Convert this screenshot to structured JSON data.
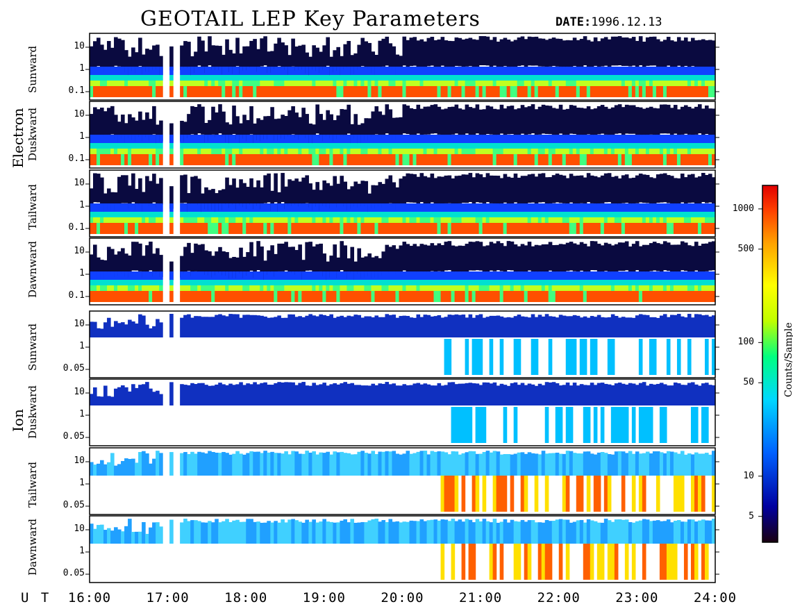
{
  "header": {
    "title": "GEOTAIL LEP Key Parameters",
    "date_label": "DATE:",
    "date_value": "1996.12.13"
  },
  "groups": {
    "electron": "Electron",
    "ion": "Ion"
  },
  "colorbar": {
    "label": "Counts/Sample",
    "ticks": [
      "1000",
      "500",
      "100",
      "50",
      "10",
      "5"
    ],
    "tick_values": [
      1000,
      500,
      100,
      50,
      10,
      5
    ],
    "colors": [
      "#1a0010",
      "#0000a0",
      "#0060ff",
      "#00d8ff",
      "#00ff80",
      "#c0ff00",
      "#ffff00",
      "#ffa000",
      "#ff4000",
      "#e00000"
    ]
  },
  "x_axis": {
    "ut_label": "U T",
    "ticks": [
      "16:00",
      "17:00",
      "18:00",
      "19:00",
      "20:00",
      "21:00",
      "22:00",
      "23:00",
      "24:00"
    ]
  },
  "chart_data": [
    {
      "type": "heatmap",
      "group": "Electron",
      "direction": "Sunward",
      "y_ticks": [
        "10",
        "1",
        "0.1"
      ],
      "x_range_hours": [
        16,
        24
      ],
      "data_gaps_hours": [
        [
          16.93,
          17.02
        ],
        [
          17.05,
          17.15
        ]
      ]
    },
    {
      "type": "heatmap",
      "group": "Electron",
      "direction": "Duskward",
      "y_ticks": [
        "10",
        "1",
        "0.1"
      ],
      "x_range_hours": [
        16,
        24
      ],
      "data_gaps_hours": [
        [
          16.93,
          17.02
        ],
        [
          17.05,
          17.15
        ]
      ]
    },
    {
      "type": "heatmap",
      "group": "Electron",
      "direction": "Tailward",
      "y_ticks": [
        "10",
        "1",
        "0.1"
      ],
      "x_range_hours": [
        16,
        24
      ],
      "data_gaps_hours": [
        [
          16.93,
          17.02
        ],
        [
          17.05,
          17.15
        ]
      ]
    },
    {
      "type": "heatmap",
      "group": "Electron",
      "direction": "Dawnward",
      "y_ticks": [
        "10",
        "1",
        "0.1"
      ],
      "x_range_hours": [
        16,
        24
      ],
      "data_gaps_hours": [
        [
          16.93,
          17.02
        ],
        [
          17.05,
          17.15
        ]
      ]
    },
    {
      "type": "heatmap",
      "group": "Ion",
      "direction": "Sunward",
      "y_ticks": [
        "10",
        "1",
        "0.05"
      ],
      "x_range_hours": [
        16,
        24
      ],
      "data_gaps_hours": [
        [
          16.93,
          17.02
        ],
        [
          17.05,
          17.15
        ]
      ]
    },
    {
      "type": "heatmap",
      "group": "Ion",
      "direction": "Duskward",
      "y_ticks": [
        "10",
        "1",
        "0.05"
      ],
      "x_range_hours": [
        16,
        24
      ],
      "data_gaps_hours": [
        [
          16.93,
          17.02
        ],
        [
          17.05,
          17.15
        ]
      ]
    },
    {
      "type": "heatmap",
      "group": "Ion",
      "direction": "Tailward",
      "y_ticks": [
        "10",
        "1",
        "0.05"
      ],
      "x_range_hours": [
        16,
        24
      ],
      "data_gaps_hours": [
        [
          16.93,
          17.02
        ],
        [
          17.05,
          17.15
        ]
      ]
    },
    {
      "type": "heatmap",
      "group": "Ion",
      "direction": "Dawnward",
      "y_ticks": [
        "10",
        "1",
        "0.05"
      ],
      "x_range_hours": [
        16,
        24
      ],
      "data_gaps_hours": [
        [
          16.93,
          17.02
        ],
        [
          17.05,
          17.15
        ]
      ]
    }
  ]
}
